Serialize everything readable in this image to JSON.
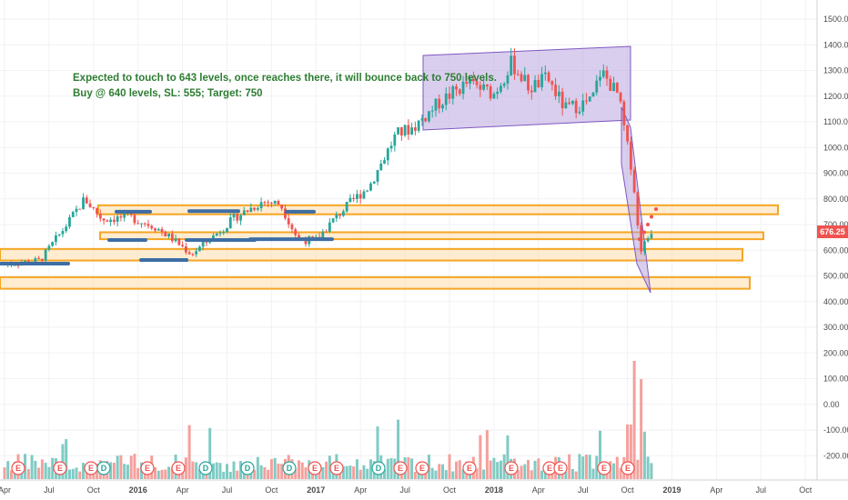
{
  "chart_data": {
    "type": "candlestick",
    "x_ticks": [
      "Apr",
      "Jul",
      "Oct",
      "2016",
      "Apr",
      "Jul",
      "Oct",
      "2017",
      "Apr",
      "Jul",
      "Oct",
      "2018",
      "Apr",
      "Jul",
      "Oct",
      "2019",
      "Apr",
      "Jul",
      "Oct"
    ],
    "y_ticks": [
      1500,
      1400,
      1300,
      1200,
      1100,
      1000,
      900,
      800,
      700,
      600,
      500,
      400,
      300,
      200,
      100,
      0,
      -100,
      -200
    ],
    "y_tick_labels": [
      "1500.00",
      "1400.00",
      "1300.00",
      "1200.00",
      "1100.00",
      "1000.00",
      "900.00",
      "800.00",
      "700.00",
      "600.00",
      "500.00",
      "400.00",
      "300.00",
      "200.00",
      "100.00",
      "0.00",
      "-100.00",
      "-200.00"
    ],
    "ylim": [
      -265,
      1545
    ],
    "last_price": 676.25,
    "last_price_label": "676.25",
    "colors": {
      "up": "#26a69a",
      "down": "#ef5350",
      "volume_up": "#7fcbc4",
      "volume_down": "#f4a09c",
      "zone_fill": "#ffe0b2",
      "zone_border": "#f5a623",
      "channel_fill": "#b39ddb",
      "channel_border": "#7e57c2",
      "support": "#3d6ea5",
      "note": "#2e7d32"
    },
    "price_path": [
      [
        2015.25,
        545
      ],
      [
        2015.45,
        560
      ],
      [
        2015.6,
        700
      ],
      [
        2015.7,
        800
      ],
      [
        2015.8,
        720
      ],
      [
        2015.95,
        730
      ],
      [
        2016.1,
        690
      ],
      [
        2016.2,
        640
      ],
      [
        2016.3,
        585
      ],
      [
        2016.4,
        640
      ],
      [
        2016.55,
        730
      ],
      [
        2016.7,
        790
      ],
      [
        2016.8,
        780
      ],
      [
        2016.9,
        640
      ],
      [
        2017.0,
        640
      ],
      [
        2017.1,
        720
      ],
      [
        2017.2,
        790
      ],
      [
        2017.3,
        850
      ],
      [
        2017.45,
        1050
      ],
      [
        2017.55,
        1080
      ],
      [
        2017.7,
        1180
      ],
      [
        2017.85,
        1250
      ],
      [
        2018.0,
        1210
      ],
      [
        2018.1,
        1330
      ],
      [
        2018.2,
        1230
      ],
      [
        2018.3,
        1270
      ],
      [
        2018.4,
        1150
      ],
      [
        2018.55,
        1180
      ],
      [
        2018.6,
        1300
      ],
      [
        2018.7,
        1200
      ],
      [
        2018.75,
        1000
      ],
      [
        2018.78,
        900
      ],
      [
        2018.82,
        600
      ],
      [
        2018.86,
        640
      ],
      [
        2018.88,
        676
      ]
    ],
    "volume_spikes_at": [
      2018.79,
      2018.82
    ],
    "zones": [
      {
        "from": 740,
        "to": 775
      },
      {
        "from": 643,
        "to": 670
      },
      {
        "from": 560,
        "to": 605
      },
      {
        "from": 450,
        "to": 495
      }
    ],
    "support_lines": [
      548,
      640,
      643,
      750,
      562
    ],
    "projected_points": [
      [
        2018.83,
        643
      ],
      [
        2018.85,
        670
      ],
      [
        2018.87,
        700
      ],
      [
        2018.89,
        730
      ],
      [
        2018.92,
        760
      ]
    ],
    "event_markers": [
      "E",
      "E",
      "E",
      "D",
      "E",
      "E",
      "D",
      "D",
      "D",
      "E",
      "E",
      "D",
      "E",
      "E",
      "E",
      "E",
      "E",
      "E",
      "E",
      "E",
      "E",
      "E"
    ],
    "annotation": [
      "Expected to touch to 643 levels, once reaches there, it will bounce back to 750 levels.",
      "Buy @ 640 levels, SL: 555; Target: 750"
    ]
  }
}
